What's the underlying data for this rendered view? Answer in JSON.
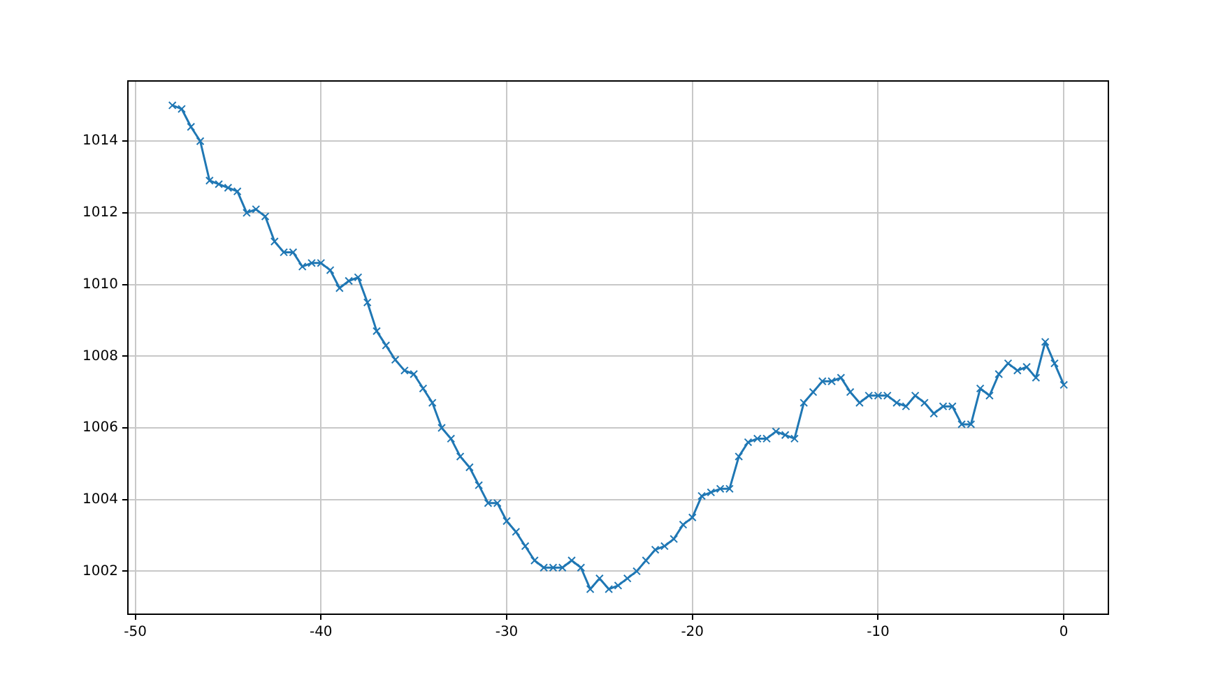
{
  "chart_data": {
    "type": "line",
    "marker": "cross",
    "line_style": "solid",
    "grid": true,
    "xlim": [
      -50.4,
      2.4
    ],
    "xticks": [
      -50,
      -40,
      -30,
      -20,
      -10,
      0
    ],
    "ylim": [
      1000.8,
      1015.68
    ],
    "yticks": [
      1002,
      1004,
      1006,
      1008,
      1010,
      1012,
      1014
    ],
    "x": [
      -48,
      -47.5,
      -47,
      -46.5,
      -46,
      -45.5,
      -45,
      -44.5,
      -44,
      -43.5,
      -43,
      -42.5,
      -42,
      -41.5,
      -41,
      -40.5,
      -40,
      -39.5,
      -39,
      -38.5,
      -38,
      -37.5,
      -37,
      -36.5,
      -36,
      -35.5,
      -35,
      -34.5,
      -34,
      -33.5,
      -33,
      -32.5,
      -32,
      -31.5,
      -31,
      -30.5,
      -30,
      -29.5,
      -29,
      -28.5,
      -28,
      -27.5,
      -27,
      -26.5,
      -26,
      -25.5,
      -25,
      -24.5,
      -24,
      -23.5,
      -23,
      -22.5,
      -22,
      -21.5,
      -21,
      -20.5,
      -20,
      -19.5,
      -19,
      -18.5,
      -18,
      -17.5,
      -17,
      -16.5,
      -16,
      -15.5,
      -15,
      -14.5,
      -14,
      -13.5,
      -13,
      -12.5,
      -12,
      -11.5,
      -11,
      -10.5,
      -10,
      -9.5,
      -9,
      -8.5,
      -8,
      -7.5,
      -7,
      -6.5,
      -6,
      -5.5,
      -5,
      -4.5,
      -4,
      -3.5,
      -3,
      -2.5,
      -2,
      -1.5,
      -1,
      -0.5,
      0
    ],
    "series": [
      {
        "color": "#1f77b4",
        "values": [
          1015.0,
          1014.9,
          1014.4,
          1014.0,
          1012.9,
          1012.8,
          1012.7,
          1012.6,
          1012.0,
          1012.1,
          1011.9,
          1011.2,
          1010.9,
          1010.9,
          1010.5,
          1010.6,
          1010.6,
          1010.4,
          1009.9,
          1010.1,
          1010.2,
          1009.5,
          1008.7,
          1008.3,
          1007.9,
          1007.6,
          1007.5,
          1007.1,
          1006.7,
          1006.0,
          1005.7,
          1005.2,
          1004.9,
          1004.4,
          1003.9,
          1003.9,
          1003.4,
          1003.1,
          1002.7,
          1002.3,
          1002.1,
          1002.1,
          1002.1,
          1002.3,
          1002.1,
          1001.5,
          1001.8,
          1001.5,
          1001.6,
          1001.8,
          1002.0,
          1002.3,
          1002.6,
          1002.7,
          1002.9,
          1003.3,
          1003.5,
          1004.1,
          1004.2,
          1004.3,
          1004.3,
          1005.2,
          1005.6,
          1005.7,
          1005.7,
          1005.9,
          1005.8,
          1005.7,
          1006.7,
          1007.0,
          1007.3,
          1007.3,
          1007.4,
          1007.0,
          1006.7,
          1006.9,
          1006.9,
          1006.9,
          1006.7,
          1006.6,
          1006.9,
          1006.7,
          1006.4,
          1006.6,
          1006.6,
          1006.1,
          1006.1,
          1007.1,
          1006.9,
          1007.5,
          1007.8,
          1007.6,
          1007.7,
          1007.4,
          1008.4,
          1007.8,
          1007.2
        ]
      }
    ]
  }
}
